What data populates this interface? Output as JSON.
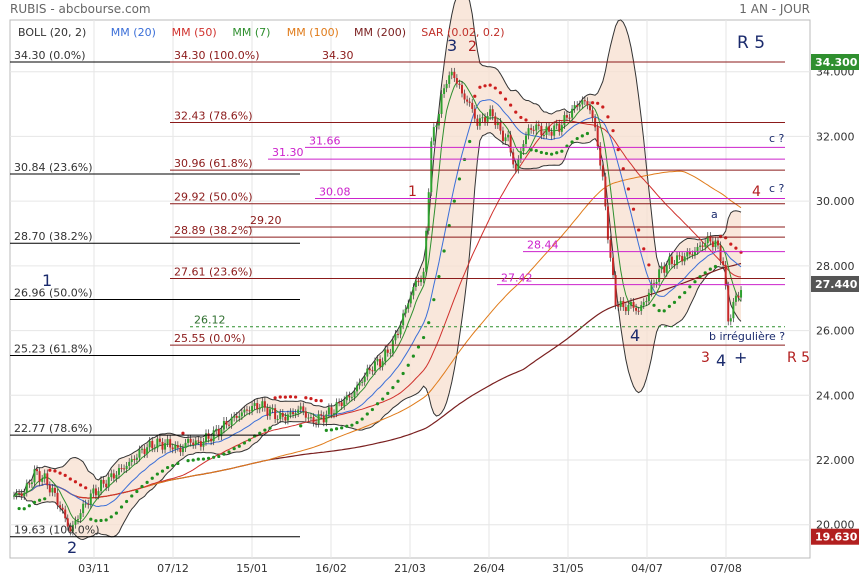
{
  "header": {
    "left": "RUBIS - abcbourse.com",
    "right": "1 AN - JOUR"
  },
  "legend": [
    {
      "label": "BOLL (20, 2)",
      "color": "#333333"
    },
    {
      "label": "MM (20)",
      "color": "#3b6fd8"
    },
    {
      "label": "MM (50)",
      "color": "#d0312d"
    },
    {
      "label": "MM (7)",
      "color": "#2f8f2f"
    },
    {
      "label": "MM (100)",
      "color": "#e07b1a"
    },
    {
      "label": "MM (200)",
      "color": "#7a1f1f"
    },
    {
      "label": "SAR (0.02, 0.2)",
      "color": "#c0302a"
    }
  ],
  "colors": {
    "price_line": "#6a1a1a",
    "fib_black": "#000000",
    "fib_red": "#8b1a1a",
    "magenta": "#cc22cc",
    "wave_label": "#1a2a6c",
    "red_label": "#b21f1f",
    "last_price_bg": "#555555",
    "max_bg": "#2f8f2f",
    "min_bg": "#b21f1f"
  },
  "chart_data": {
    "type": "candlestick",
    "ylim": [
      19.3,
      34.9
    ],
    "yticks": [
      "20.000",
      "22.000",
      "24.000",
      "26.000",
      "28.000",
      "30.000",
      "32.000",
      "34.000"
    ],
    "xticks": [
      "03/11",
      "07/12",
      "15/01",
      "16/02",
      "21/03",
      "26/04",
      "31/05",
      "04/07",
      "07/08"
    ],
    "price_badges": {
      "max": "34.300",
      "last": "27.440",
      "min": "19.630"
    },
    "fib_black": [
      {
        "label": "34.30 (0.0%)",
        "value": 34.3
      },
      {
        "label": "30.84 (23.6%)",
        "value": 30.84
      },
      {
        "label": "28.70 (38.2%)",
        "value": 28.7
      },
      {
        "label": "26.96 (50.0%)",
        "value": 26.96
      },
      {
        "label": "25.23 (61.8%)",
        "value": 25.23
      },
      {
        "label": "22.77 (78.6%)",
        "value": 22.77
      },
      {
        "label": "19.63 (100.0%)",
        "value": 19.63
      }
    ],
    "fib_red": [
      {
        "label": "34.30 (100.0%)",
        "value": 34.3
      },
      {
        "label": "32.43 (78.6%)",
        "value": 32.43
      },
      {
        "label": "30.96 (61.8%)",
        "value": 30.96
      },
      {
        "label": "29.92 (50.0%)",
        "value": 29.92
      },
      {
        "label": "28.89 (38.2%)",
        "value": 28.89
      },
      {
        "label": "27.61 (23.6%)",
        "value": 27.61
      },
      {
        "label": "25.55 (0.0%)",
        "value": 25.55
      }
    ],
    "resistance_red": [
      {
        "label": "34.30",
        "value": 34.3
      },
      {
        "label": "29.20",
        "value": 29.2
      }
    ],
    "magenta_levels": [
      {
        "label": "31.66",
        "value": 31.66
      },
      {
        "label": "31.30",
        "value": 31.3
      },
      {
        "label": "30.08",
        "value": 30.08
      },
      {
        "label": "28.44",
        "value": 28.44
      },
      {
        "label": "27.42",
        "value": 27.42
      }
    ],
    "support_dashed": {
      "label": "26.12",
      "value": 26.12
    },
    "annotations": {
      "wave_1": "1",
      "wave_2": "2",
      "wave_3": "3",
      "wave_4": "4",
      "wave_4b": "4",
      "plus": "+",
      "r5_top": "R 5",
      "red_1": "1",
      "red_2": "2",
      "red_3": "3",
      "red_4": "4",
      "r5_bottom": "R 5",
      "c_top": "c ?",
      "c_mid": "c ?",
      "a_label": "a",
      "b_label": "b irrégulière ?"
    },
    "price_key": [
      [
        0,
        20.9
      ],
      [
        4,
        21.0
      ],
      [
        8,
        21.6
      ],
      [
        12,
        21.4
      ],
      [
        16,
        20.9
      ],
      [
        20,
        20.2
      ],
      [
        22,
        19.8
      ],
      [
        26,
        20.4
      ],
      [
        30,
        20.9
      ],
      [
        34,
        21.2
      ],
      [
        40,
        21.6
      ],
      [
        45,
        21.9
      ],
      [
        50,
        22.3
      ],
      [
        55,
        22.5
      ],
      [
        60,
        22.5
      ],
      [
        65,
        22.3
      ],
      [
        68,
        22.6
      ],
      [
        72,
        22.5
      ],
      [
        76,
        22.7
      ],
      [
        80,
        22.9
      ],
      [
        84,
        23.2
      ],
      [
        88,
        23.4
      ],
      [
        92,
        23.6
      ],
      [
        96,
        23.7
      ],
      [
        100,
        23.5
      ],
      [
        104,
        23.3
      ],
      [
        108,
        23.4
      ],
      [
        112,
        23.6
      ],
      [
        116,
        23.2
      ],
      [
        120,
        23.3
      ],
      [
        124,
        23.5
      ],
      [
        128,
        23.8
      ],
      [
        132,
        24.0
      ],
      [
        136,
        24.5
      ],
      [
        140,
        24.9
      ],
      [
        144,
        25.1
      ],
      [
        148,
        25.6
      ],
      [
        151,
        26.2
      ],
      [
        154,
        26.9
      ],
      [
        157,
        27.5
      ],
      [
        160,
        27.7
      ],
      [
        163,
        31.8
      ],
      [
        166,
        32.8
      ],
      [
        169,
        33.8
      ],
      [
        172,
        33.9
      ],
      [
        175,
        33.3
      ],
      [
        178,
        33.0
      ],
      [
        181,
        32.4
      ],
      [
        184,
        32.6
      ],
      [
        187,
        32.7
      ],
      [
        190,
        32.1
      ],
      [
        193,
        31.9
      ],
      [
        196,
        30.9
      ],
      [
        198,
        31.6
      ],
      [
        201,
        32.2
      ],
      [
        204,
        32.3
      ],
      [
        207,
        32.1
      ],
      [
        210,
        32.2
      ],
      [
        213,
        32.3
      ],
      [
        216,
        32.6
      ],
      [
        219,
        32.9
      ],
      [
        222,
        33.1
      ],
      [
        225,
        32.9
      ],
      [
        228,
        31.8
      ],
      [
        230,
        30.6
      ],
      [
        233,
        28.2
      ],
      [
        235,
        26.9
      ],
      [
        238,
        26.7
      ],
      [
        241,
        26.8
      ],
      [
        244,
        26.6
      ],
      [
        247,
        27.0
      ],
      [
        250,
        27.5
      ],
      [
        253,
        27.9
      ],
      [
        256,
        28.1
      ],
      [
        259,
        28.2
      ],
      [
        262,
        28.3
      ],
      [
        265,
        28.4
      ],
      [
        268,
        28.6
      ],
      [
        271,
        28.8
      ],
      [
        274,
        28.7
      ],
      [
        277,
        28.1
      ],
      [
        279,
        26.3
      ],
      [
        281,
        26.8
      ],
      [
        284,
        27.3
      ]
    ]
  }
}
